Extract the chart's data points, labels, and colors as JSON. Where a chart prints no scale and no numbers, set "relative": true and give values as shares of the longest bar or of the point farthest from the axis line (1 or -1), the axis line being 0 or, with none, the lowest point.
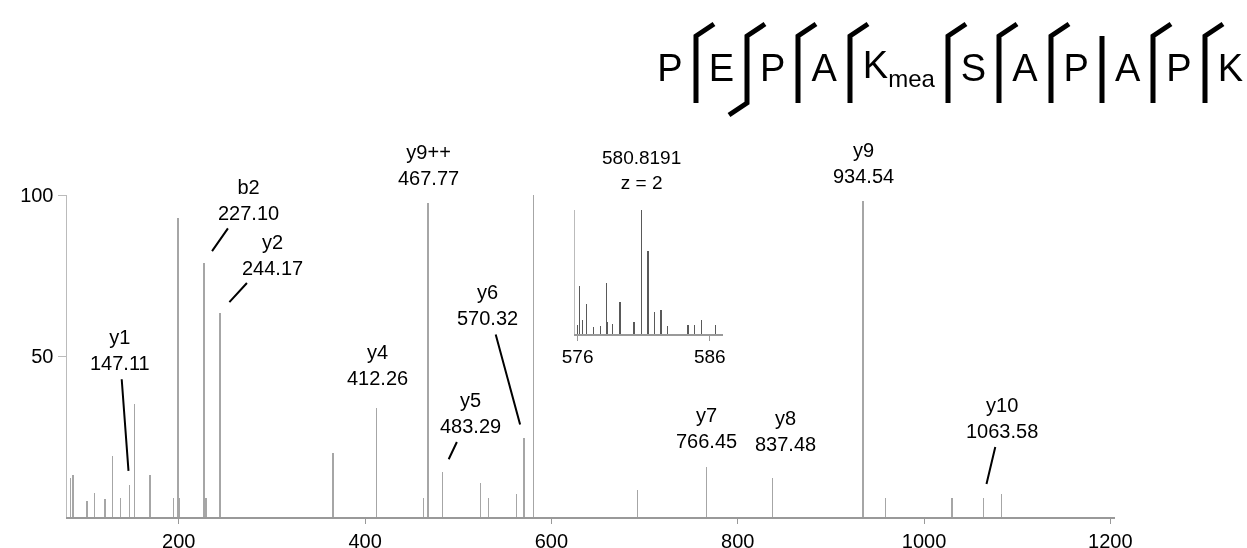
{
  "chart_data": [
    {
      "type": "bar",
      "color": "#a6a6a6",
      "x": [
        83.6,
        86.6,
        101.6,
        109.7,
        121,
        129,
        137.6,
        147.11,
        152.3,
        168.9,
        194.2,
        199.2,
        201,
        227.1,
        229.2,
        244.17,
        365.5,
        412.26,
        462.7,
        467.77,
        483.29,
        523.8,
        532.4,
        562.5,
        570.32,
        580.8191,
        692.3,
        766.45,
        837.48,
        934.54,
        958.5,
        1030.1,
        1063.58,
        1083
      ],
      "values": [
        12,
        13,
        5,
        7.5,
        5.5,
        19,
        6,
        10,
        35,
        13,
        6,
        93,
        6,
        79,
        6,
        63.5,
        20,
        34,
        6,
        97.5,
        14,
        10.5,
        6,
        7,
        24.5,
        100,
        8.5,
        15.5,
        12,
        98,
        6,
        6,
        6,
        7
      ],
      "xlim": [
        80,
        1205
      ],
      "xticks": [
        200,
        400,
        600,
        800,
        1000,
        1200
      ],
      "ylim": [
        0,
        100
      ],
      "yticks": [
        50,
        100
      ],
      "grid": false,
      "legend": false,
      "annotations": [
        {
          "text": "y1\n147.11",
          "x": 147.11,
          "y": 10
        },
        {
          "text": "b2\n227.10",
          "x": 227.1,
          "y": 79
        },
        {
          "text": "y2\n244.17",
          "x": 244.17,
          "y": 63.5
        },
        {
          "text": "y4\n412.26",
          "x": 412.26,
          "y": 34
        },
        {
          "text": "y9++\n467.77",
          "x": 467.77,
          "y": 97.5
        },
        {
          "text": "y5\n483.29",
          "x": 483.29,
          "y": 14
        },
        {
          "text": "y6\n570.32",
          "x": 570.32,
          "y": 24.5
        },
        {
          "text": "y7\n766.45",
          "x": 766.45,
          "y": 15.5
        },
        {
          "text": "y8\n837.48",
          "x": 837.48,
          "y": 12
        },
        {
          "text": "y9\n934.54",
          "x": 934.54,
          "y": 98
        },
        {
          "text": "y10\n1063.58",
          "x": 1063.58,
          "y": 6
        }
      ]
    },
    {
      "type": "bar",
      "color": "#595959",
      "x": [
        576.0,
        576.15,
        576.37,
        576.67,
        577.2,
        577.72,
        578.17,
        578.25,
        578.62,
        579.22,
        580.27,
        580.8191,
        581.32,
        581.82,
        582.3,
        582.82,
        584.35,
        584.85,
        585.37,
        586.42
      ],
      "values": [
        0.07,
        0.39,
        0.11,
        0.24,
        0.06,
        0.065,
        0.41,
        0.1,
        0.08,
        0.26,
        0.095,
        1,
        0.67,
        0.175,
        0.19,
        0.065,
        0.07,
        0.07,
        0.11,
        0.07
      ],
      "relative": true,
      "xlim": [
        575.8,
        587
      ],
      "xticks": [
        576,
        586
      ],
      "tick_labels": "x",
      "grid": false,
      "legend": false,
      "annotations": [
        {
          "text": "580.8191\nz = 2",
          "x": 580.8191,
          "y": 1
        }
      ]
    },
    {
      "type": "other",
      "annotations": [
        "P",
        "E",
        "P",
        "A",
        "K$_{mea}$",
        "S",
        "A",
        "P",
        "A",
        "P",
        "K"
      ]
    }
  ]
}
